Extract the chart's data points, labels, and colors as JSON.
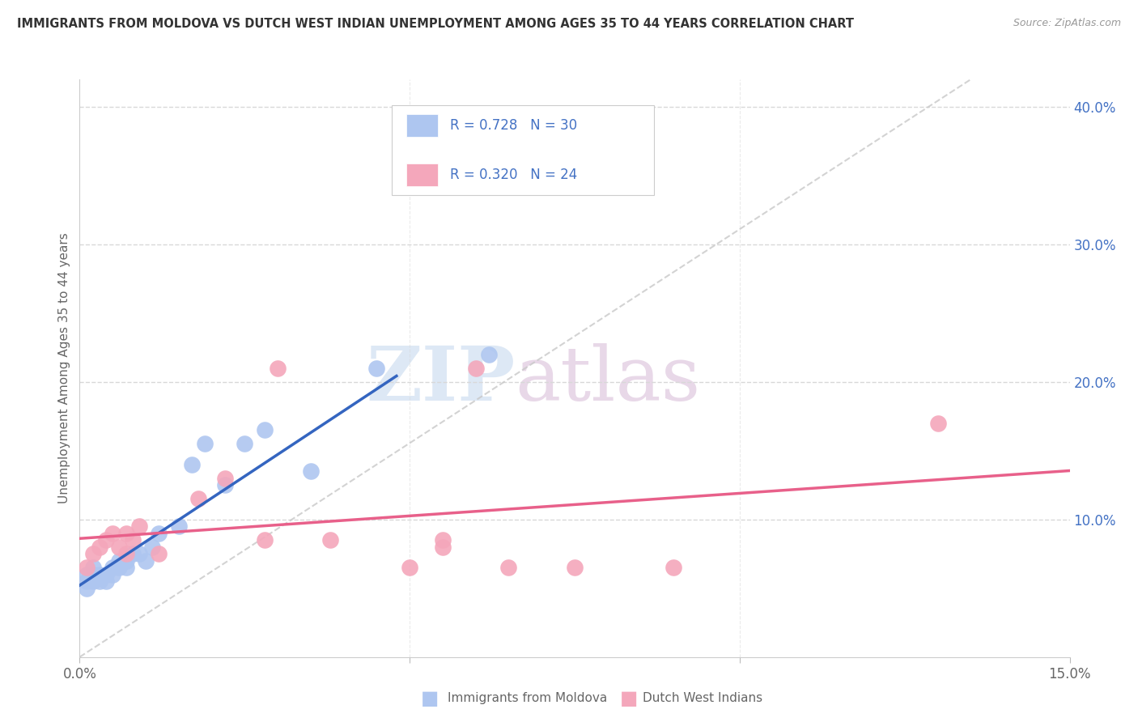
{
  "title": "IMMIGRANTS FROM MOLDOVA VS DUTCH WEST INDIAN UNEMPLOYMENT AMONG AGES 35 TO 44 YEARS CORRELATION CHART",
  "source": "Source: ZipAtlas.com",
  "ylabel": "Unemployment Among Ages 35 to 44 years",
  "xlim": [
    0,
    0.15
  ],
  "ylim": [
    0,
    0.42
  ],
  "xticks": [
    0.0,
    0.05,
    0.1,
    0.15
  ],
  "xticklabels": [
    "0.0%",
    "",
    "",
    "15.0%"
  ],
  "yticks_right": [
    0.1,
    0.2,
    0.3,
    0.4
  ],
  "yticklabels_right": [
    "10.0%",
    "20.0%",
    "30.0%",
    "40.0%"
  ],
  "legend1_label": "R = 0.728   N = 30",
  "legend2_label": "R = 0.320   N = 24",
  "bottom_legend1": "Immigrants from Moldova",
  "bottom_legend2": "Dutch West Indians",
  "moldova_color": "#aec6f0",
  "dutch_color": "#f4a7bb",
  "moldova_line_color": "#3465c0",
  "dutch_line_color": "#e8608a",
  "ref_line_color": "#c8c8c8",
  "title_color": "#333333",
  "right_axis_color": "#4472c4",
  "source_color": "#999999",
  "moldova_x": [
    0.001,
    0.001,
    0.001,
    0.002,
    0.002,
    0.002,
    0.003,
    0.003,
    0.004,
    0.004,
    0.005,
    0.005,
    0.006,
    0.006,
    0.007,
    0.007,
    0.008,
    0.009,
    0.01,
    0.011,
    0.012,
    0.015,
    0.017,
    0.019,
    0.022,
    0.025,
    0.028,
    0.035,
    0.045,
    0.062
  ],
  "moldova_y": [
    0.05,
    0.055,
    0.06,
    0.055,
    0.06,
    0.065,
    0.055,
    0.06,
    0.055,
    0.06,
    0.06,
    0.065,
    0.065,
    0.07,
    0.065,
    0.07,
    0.075,
    0.075,
    0.07,
    0.08,
    0.09,
    0.095,
    0.14,
    0.155,
    0.125,
    0.155,
    0.165,
    0.135,
    0.21,
    0.22
  ],
  "dutch_x": [
    0.001,
    0.002,
    0.003,
    0.004,
    0.005,
    0.006,
    0.007,
    0.007,
    0.008,
    0.009,
    0.012,
    0.018,
    0.022,
    0.028,
    0.03,
    0.038,
    0.05,
    0.055,
    0.055,
    0.06,
    0.065,
    0.075,
    0.09,
    0.13
  ],
  "dutch_y": [
    0.065,
    0.075,
    0.08,
    0.085,
    0.09,
    0.08,
    0.075,
    0.09,
    0.085,
    0.095,
    0.075,
    0.115,
    0.13,
    0.085,
    0.21,
    0.085,
    0.065,
    0.08,
    0.085,
    0.21,
    0.065,
    0.065,
    0.065,
    0.17
  ],
  "watermark_zip": "ZIP",
  "watermark_atlas": "atlas",
  "background_color": "#ffffff",
  "grid_color": "#d8d8d8",
  "legend_border_color": "#cccccc"
}
